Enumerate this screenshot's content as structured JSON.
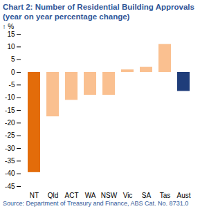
{
  "chart_data": {
    "type": "bar",
    "title": "Chart 2: Number of Residential Building Approvals (year on year percentage change)",
    "source": "Source: Department of Treasury and Finance, ABS Cat. No. 8731.0",
    "ylabel": "%",
    "categories": [
      "NT",
      "Qld",
      "ACT",
      "WA",
      "NSW",
      "Vic",
      "SA",
      "Tas",
      "Aust"
    ],
    "values": [
      -39.5,
      -17.5,
      -11,
      -9,
      -9,
      1,
      2,
      11,
      -7.5
    ],
    "colors": [
      "#e36c0a",
      "#fac090",
      "#fac090",
      "#fac090",
      "#fac090",
      "#fac090",
      "#fac090",
      "#fac090",
      "#1f3d7a"
    ],
    "ylim": [
      -45,
      15
    ],
    "yticks": [
      -45,
      -40,
      -35,
      -30,
      -25,
      -20,
      -15,
      -10,
      -5,
      0,
      5,
      10,
      15
    ],
    "grid": false
  }
}
